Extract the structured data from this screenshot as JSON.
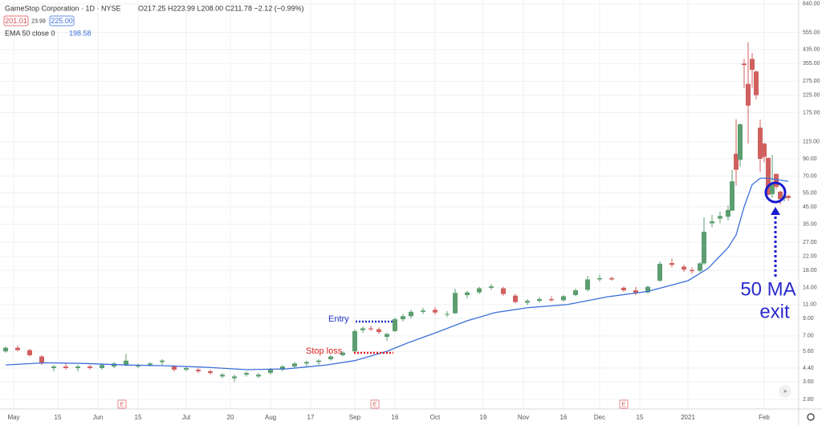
{
  "chart_data": {
    "type": "candlestick",
    "title": "GameStop Corporation · 1D · NYSE",
    "ohlc_legend": "O217.25 H223.99 L208.00 C211.78 −2.12 (−0.99%)",
    "bid": "201.01",
    "spread": "23.99",
    "ask": "225.00",
    "indicator_label": "EMA 50 close 0",
    "indicator_value": "198.58",
    "log_scale": true,
    "up_color": "#5c9e70",
    "down_color": "#d0605e",
    "ema_color": "#3c6fd9",
    "ylim": [
      2.44,
      888
    ],
    "yticks": [
      {
        "value": 840,
        "label": "840.00"
      },
      {
        "value": 555,
        "label": "555.00"
      },
      {
        "value": 435,
        "label": "435.00"
      },
      {
        "value": 355,
        "label": "355.00"
      },
      {
        "value": 275,
        "label": "275.00"
      },
      {
        "value": 225,
        "label": "225.00"
      },
      {
        "value": 175,
        "label": "175.00"
      },
      {
        "value": 115,
        "label": "115.00"
      },
      {
        "value": 90,
        "label": "90.00"
      },
      {
        "value": 70,
        "label": "70.00"
      },
      {
        "value": 55,
        "label": "55.00"
      },
      {
        "value": 45,
        "label": "45.00"
      },
      {
        "value": 35,
        "label": "35.00"
      },
      {
        "value": 27,
        "label": "27.00"
      },
      {
        "value": 22,
        "label": "22.00"
      },
      {
        "value": 18,
        "label": "18.00"
      },
      {
        "value": 14,
        "label": "14.00"
      },
      {
        "value": 11,
        "label": "11.00"
      },
      {
        "value": 9,
        "label": "9.00"
      },
      {
        "value": 7,
        "label": "7.00"
      },
      {
        "value": 5.6,
        "label": "5.60"
      },
      {
        "value": 4.4,
        "label": "4.40"
      },
      {
        "value": 3.6,
        "label": "3.60"
      },
      {
        "value": 2.8,
        "label": "2.80"
      }
    ],
    "xlim": [
      -1.4,
      197.6
    ],
    "xticks": [
      {
        "value": 2,
        "label": "May"
      },
      {
        "value": 13,
        "label": "15"
      },
      {
        "value": 23,
        "label": "Jun"
      },
      {
        "value": 33,
        "label": "15"
      },
      {
        "value": 45,
        "label": "Jul"
      },
      {
        "value": 56,
        "label": "20"
      },
      {
        "value": 66,
        "label": "Aug"
      },
      {
        "value": 76,
        "label": "17"
      },
      {
        "value": 87,
        "label": "Sep"
      },
      {
        "value": 97,
        "label": "16"
      },
      {
        "value": 107,
        "label": "Oct"
      },
      {
        "value": 119,
        "label": "19"
      },
      {
        "value": 129,
        "label": "Nov"
      },
      {
        "value": 139,
        "label": "16"
      },
      {
        "value": 148,
        "label": "Dec"
      },
      {
        "value": 158,
        "label": "15"
      },
      {
        "value": 170,
        "label": "2021"
      },
      {
        "value": 189,
        "label": "Feb"
      }
    ],
    "candles": [
      [
        0,
        5.6,
        6.0,
        5.5,
        5.9
      ],
      [
        3,
        5.9,
        6.1,
        5.6,
        5.7
      ],
      [
        6,
        5.7,
        5.8,
        5.2,
        5.3
      ],
      [
        9,
        5.2,
        5.3,
        4.6,
        4.7
      ],
      [
        12,
        4.4,
        4.6,
        4.2,
        4.5
      ],
      [
        15,
        4.5,
        4.7,
        4.3,
        4.4
      ],
      [
        18,
        4.4,
        4.6,
        4.2,
        4.5
      ],
      [
        21,
        4.5,
        4.6,
        4.3,
        4.4
      ],
      [
        24,
        4.4,
        4.7,
        4.3,
        4.6
      ],
      [
        27,
        4.5,
        4.8,
        4.4,
        4.7
      ],
      [
        30,
        4.6,
        5.4,
        4.5,
        4.9
      ],
      [
        33,
        4.5,
        4.7,
        4.4,
        4.6
      ],
      [
        36,
        4.6,
        4.8,
        4.5,
        4.7
      ],
      [
        39,
        4.8,
        5.0,
        4.6,
        4.9
      ],
      [
        42,
        4.5,
        4.6,
        4.2,
        4.3
      ],
      [
        45,
        4.3,
        4.5,
        4.2,
        4.4
      ],
      [
        48,
        4.3,
        4.4,
        4.1,
        4.2
      ],
      [
        51,
        4.2,
        4.3,
        4.0,
        4.1
      ],
      [
        54,
        3.9,
        4.1,
        3.8,
        4.0
      ],
      [
        57,
        3.8,
        4.0,
        3.6,
        3.9
      ],
      [
        60,
        4.0,
        4.2,
        3.9,
        4.1
      ],
      [
        63,
        3.9,
        4.1,
        3.8,
        4.0
      ],
      [
        66,
        4.1,
        4.4,
        4.0,
        4.3
      ],
      [
        69,
        4.3,
        4.6,
        4.2,
        4.5
      ],
      [
        72,
        4.5,
        4.8,
        4.4,
        4.7
      ],
      [
        75,
        4.7,
        4.9,
        4.5,
        4.8
      ],
      [
        78,
        4.8,
        5.0,
        4.6,
        4.9
      ],
      [
        81,
        5.0,
        5.3,
        4.9,
        5.2
      ],
      [
        84,
        5.3,
        5.6,
        5.2,
        5.5
      ],
      [
        87,
        5.6,
        7.7,
        5.5,
        7.5
      ],
      [
        89,
        7.6,
        8.0,
        7.3,
        7.8
      ],
      [
        91,
        7.8,
        8.1,
        7.5,
        7.7
      ],
      [
        93,
        7.7,
        7.9,
        7.2,
        7.4
      ],
      [
        95,
        6.9,
        7.3,
        6.5,
        7.2
      ],
      [
        97,
        7.5,
        9.1,
        7.4,
        8.9
      ],
      [
        99,
        8.9,
        9.6,
        8.6,
        9.3
      ],
      [
        101,
        9.3,
        10.2,
        9.0,
        9.9
      ],
      [
        104,
        9.9,
        10.5,
        9.6,
        10.1
      ],
      [
        107,
        10.2,
        10.6,
        9.5,
        9.8
      ],
      [
        110,
        9.5,
        10.0,
        9.2,
        9.6
      ],
      [
        112,
        9.7,
        13.8,
        9.6,
        13.0
      ],
      [
        115,
        12.6,
        13.4,
        12.0,
        13.1
      ],
      [
        118,
        13.1,
        14.2,
        12.8,
        13.9
      ],
      [
        121,
        14.0,
        14.8,
        13.6,
        14.3
      ],
      [
        124,
        13.9,
        14.2,
        12.5,
        12.8
      ],
      [
        127,
        12.5,
        12.8,
        11.2,
        11.4
      ],
      [
        130,
        11.3,
        11.9,
        10.9,
        11.6
      ],
      [
        133,
        11.6,
        12.3,
        11.3,
        11.9
      ],
      [
        136,
        11.9,
        12.4,
        11.5,
        11.7
      ],
      [
        139,
        11.7,
        12.6,
        11.5,
        12.4
      ],
      [
        142,
        12.6,
        13.8,
        12.4,
        13.5
      ],
      [
        145,
        13.6,
        16.6,
        13.3,
        15.8
      ],
      [
        148,
        15.8,
        16.9,
        15.3,
        16.1
      ],
      [
        151,
        16.1,
        16.5,
        15.5,
        15.8
      ],
      [
        154,
        14.0,
        14.3,
        13.2,
        13.5
      ],
      [
        157,
        13.5,
        14.2,
        12.6,
        13.0
      ],
      [
        160,
        13.1,
        14.5,
        12.9,
        14.2
      ],
      [
        163,
        15.5,
        20.5,
        15.2,
        19.8
      ],
      [
        166,
        20.0,
        21.4,
        18.8,
        19.5
      ],
      [
        169,
        19.0,
        19.5,
        17.6,
        18.2
      ],
      [
        171,
        18.1,
        18.8,
        17.1,
        17.8
      ],
      [
        173,
        17.9,
        20.3,
        17.5,
        19.9
      ],
      [
        174,
        19.9,
        38.6,
        19.5,
        31.4
      ],
      [
        176,
        35.5,
        40.0,
        33.5,
        36.5
      ],
      [
        178,
        38.0,
        42.0,
        35.5,
        39.4
      ],
      [
        180,
        39.0,
        46.0,
        37.0,
        43.0
      ],
      [
        181,
        42.6,
        76.8,
        42.3,
        65.0
      ],
      [
        182,
        96.7,
        159.2,
        61.0,
        76.8
      ],
      [
        183,
        88.6,
        150.0,
        80.2,
        148.0
      ],
      [
        184,
        354.8,
        380.0,
        249.0,
        347.5
      ],
      [
        185,
        265.0,
        483.0,
        112.3,
        193.6
      ],
      [
        186,
        379.7,
        414.0,
        250.0,
        325.0
      ],
      [
        187,
        316.6,
        322.0,
        212.0,
        225.0
      ],
      [
        188,
        140.8,
        158.0,
        74.2,
        90.0
      ],
      [
        189,
        112.0,
        113.4,
        85.3,
        92.4
      ],
      [
        190,
        91.2,
        91.5,
        53.3,
        53.5
      ],
      [
        191,
        54.0,
        95.0,
        51.1,
        63.8
      ],
      [
        192,
        72.4,
        72.7,
        58.0,
        60.0
      ],
      [
        193,
        56.0,
        57.0,
        46.5,
        50.3
      ],
      [
        194,
        50.8,
        55.0,
        48.5,
        52.4
      ],
      [
        195,
        52.7,
        53.5,
        49.0,
        51.1
      ]
    ],
    "ema": {
      "x": [
        0,
        10,
        20,
        30,
        40,
        50,
        60,
        70,
        80,
        87,
        95,
        100,
        107,
        115,
        122,
        130,
        140,
        150,
        160,
        170,
        175,
        180,
        182,
        184,
        186,
        188,
        190,
        195
      ],
      "values": [
        4.6,
        4.75,
        4.7,
        4.6,
        4.55,
        4.45,
        4.3,
        4.35,
        4.6,
        4.9,
        5.6,
        6.3,
        7.3,
        8.7,
        9.8,
        10.5,
        11.0,
        12.3,
        13.3,
        15.5,
        18.5,
        25,
        30,
        45,
        62,
        68,
        68,
        65
      ]
    },
    "earnings": [
      {
        "x": 29,
        "label": "E"
      },
      {
        "x": 92,
        "label": "E"
      },
      {
        "x": 154,
        "label": "E"
      }
    ],
    "annotations": {
      "entry": "Entry",
      "stop": "Stop loss",
      "exit_line1": "50 MA",
      "exit_line2": "exit"
    }
  }
}
